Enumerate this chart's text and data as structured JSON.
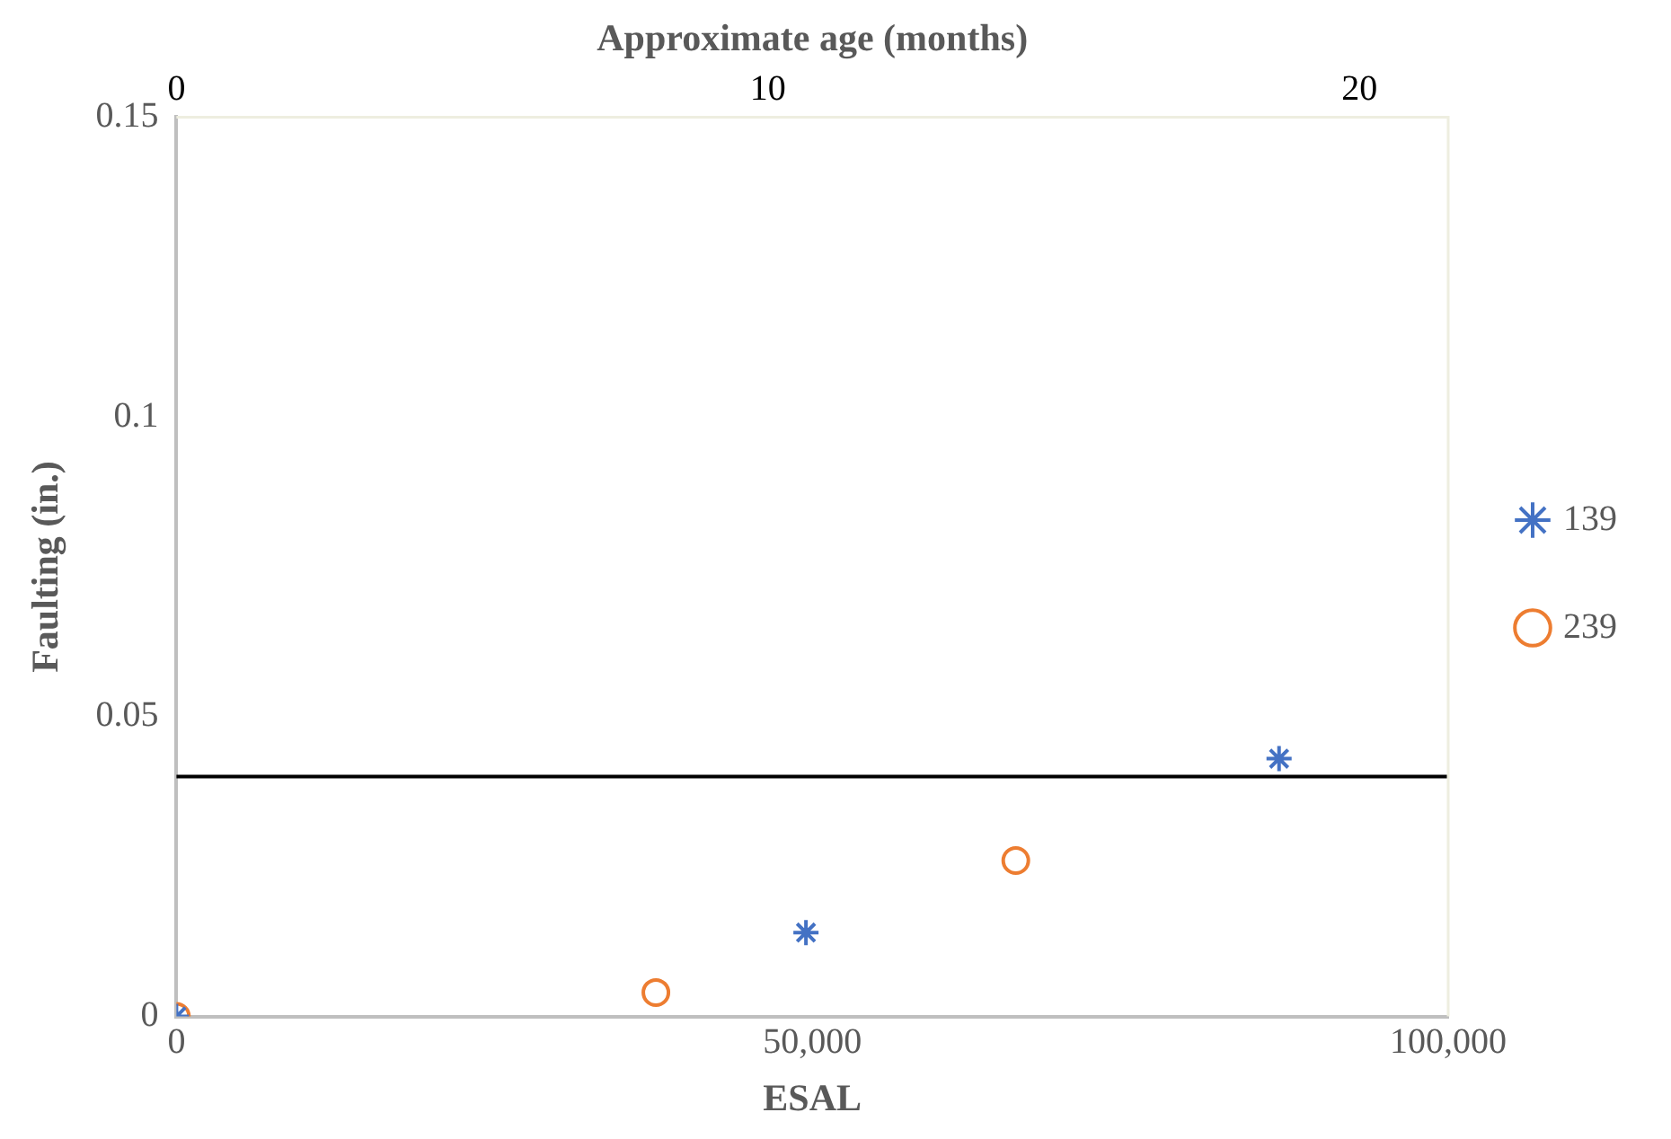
{
  "chart_data": {
    "type": "scatter",
    "xlabel": "ESAL",
    "ylabel": "Faulting (in.)",
    "x2label": "Approximate age (months)",
    "xlim": [
      0,
      100000
    ],
    "xticks": [
      {
        "value": 0,
        "label": "0"
      },
      {
        "value": 50000,
        "label": "50,000"
      },
      {
        "value": 100000,
        "label": "100,000"
      }
    ],
    "x2lim": [
      0,
      21.5
    ],
    "x2ticks": [
      0,
      10,
      20
    ],
    "ylim": [
      0,
      0.15
    ],
    "yticks": [
      {
        "value": 0,
        "label": "0"
      },
      0.05,
      0.1,
      0.15
    ],
    "series": [
      {
        "name": "139",
        "color": "#4472c4",
        "marker": "cross",
        "x": [
          0,
          49500,
          86700
        ],
        "values": [
          0,
          0.014,
          0.043
        ]
      },
      {
        "name": "239",
        "color": "#ed7d31",
        "marker": "circle",
        "x": [
          0,
          37700,
          66000
        ],
        "values": [
          0,
          0.004,
          0.026
        ]
      }
    ],
    "ref_lines": [
      {
        "axis": "y",
        "value": 0.04,
        "color": "#000000"
      }
    ],
    "grid": false,
    "legend": "right"
  }
}
